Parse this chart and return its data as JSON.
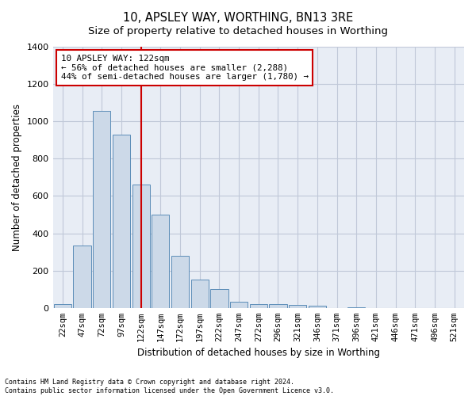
{
  "title": "10, APSLEY WAY, WORTHING, BN13 3RE",
  "subtitle": "Size of property relative to detached houses in Worthing",
  "xlabel": "Distribution of detached houses by size in Worthing",
  "ylabel": "Number of detached properties",
  "categories": [
    "22sqm",
    "47sqm",
    "72sqm",
    "97sqm",
    "122sqm",
    "147sqm",
    "172sqm",
    "197sqm",
    "222sqm",
    "247sqm",
    "272sqm",
    "296sqm",
    "321sqm",
    "346sqm",
    "371sqm",
    "396sqm",
    "421sqm",
    "446sqm",
    "471sqm",
    "496sqm",
    "521sqm"
  ],
  "values": [
    20,
    335,
    1055,
    930,
    660,
    500,
    280,
    150,
    100,
    35,
    20,
    20,
    15,
    10,
    0,
    5,
    0,
    0,
    0,
    0,
    0
  ],
  "bar_color": "#ccd9e8",
  "bar_edge_color": "#5c8db8",
  "marker_idx": 4,
  "annotation_title": "10 APSLEY WAY: 122sqm",
  "annotation_line1": "← 56% of detached houses are smaller (2,288)",
  "annotation_line2": "44% of semi-detached houses are larger (1,780) →",
  "marker_color": "#cc0000",
  "ylim": [
    0,
    1400
  ],
  "yticks": [
    0,
    200,
    400,
    600,
    800,
    1000,
    1200,
    1400
  ],
  "grid_color": "#c0c8d8",
  "background_color": "#e8edf5",
  "footer_line1": "Contains HM Land Registry data © Crown copyright and database right 2024.",
  "footer_line2": "Contains public sector information licensed under the Open Government Licence v3.0."
}
